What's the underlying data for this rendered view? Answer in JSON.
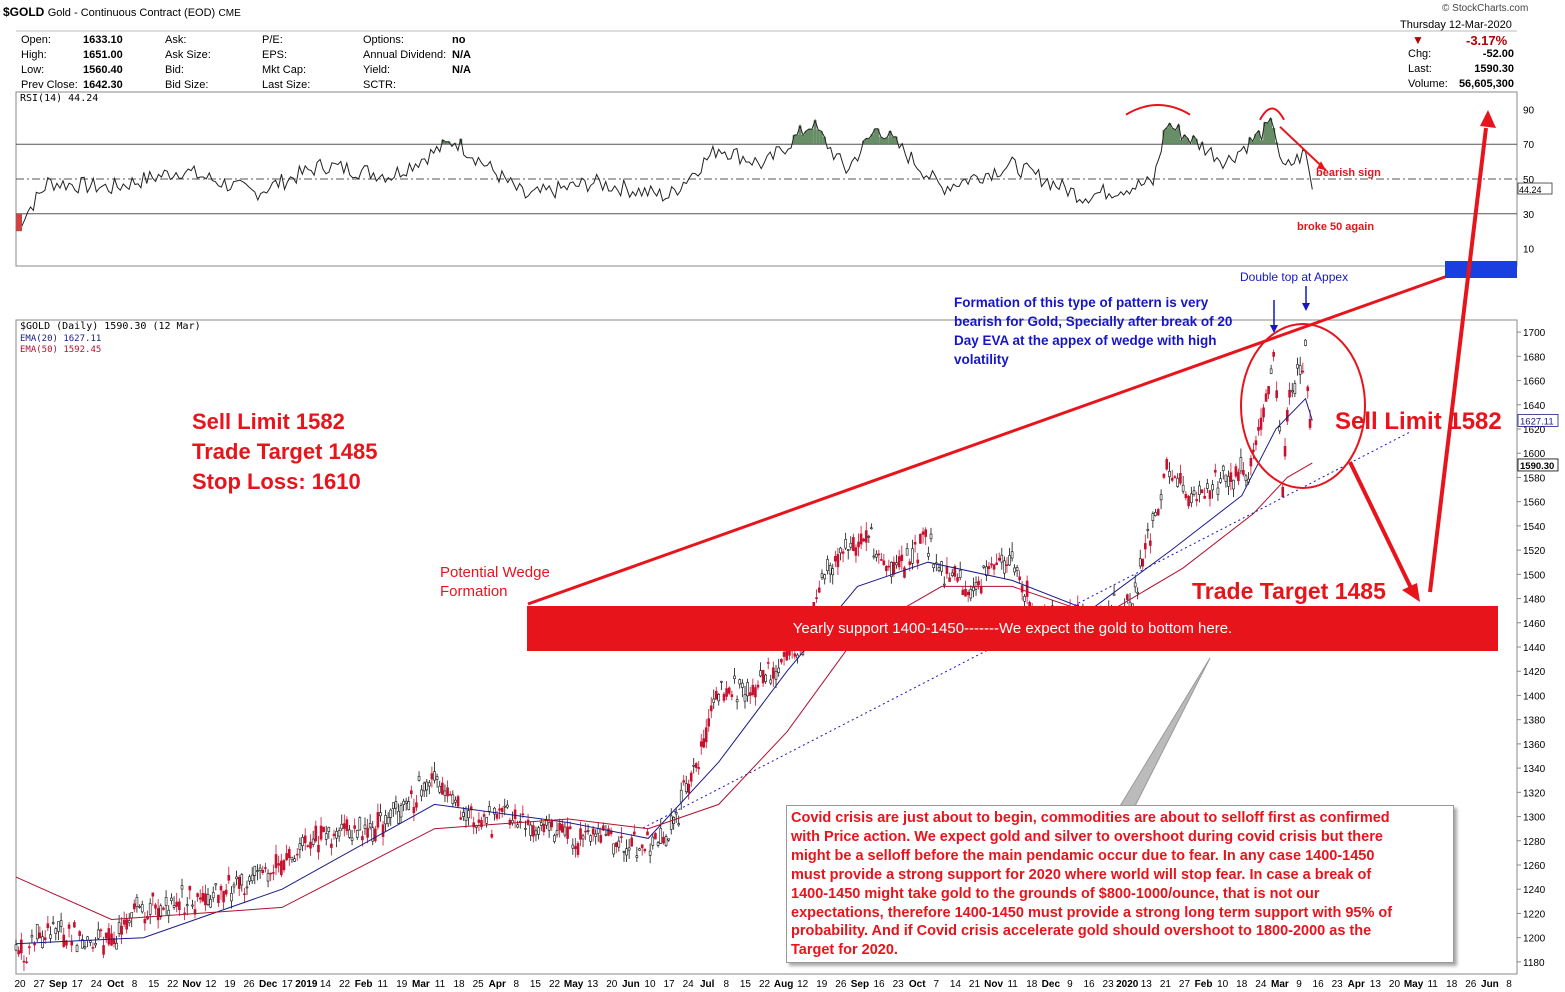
{
  "header": {
    "symbol": "$GOLD",
    "name": "Gold - Continuous Contract (EOD)",
    "exchange": "CME",
    "copyright": "© StockCharts.com",
    "date": "Thursday  12-Mar-2020",
    "change_pct": "-3.17%",
    "colors": {
      "down": "#b00000"
    }
  },
  "quote": {
    "left": [
      {
        "label": "Open:",
        "value": "1633.10"
      },
      {
        "label": "High:",
        "value": "1651.00"
      },
      {
        "label": "Low:",
        "value": "1560.40"
      },
      {
        "label": "Prev Close:",
        "value": "1642.30"
      }
    ],
    "mid1": [
      "Ask:",
      "Ask Size:",
      "Bid:",
      "Bid Size:"
    ],
    "mid2": [
      "P/E:",
      "EPS:",
      "Mkt Cap:",
      "Last Size:"
    ],
    "mid3": [
      {
        "label": "Options:",
        "value": "no"
      },
      {
        "label": "Annual Dividend:",
        "value": "N/A"
      },
      {
        "label": "Yield:",
        "value": "N/A"
      },
      {
        "label": "SCTR:",
        "value": ""
      }
    ],
    "right": [
      {
        "label": "Chg:",
        "value": "-52.00"
      },
      {
        "label": "Last:",
        "value": "1590.30"
      },
      {
        "label": "Volume:",
        "value": "56,605,300"
      }
    ]
  },
  "chart_data": [
    {
      "type": "line",
      "title": "RSI(14) 44.24",
      "ylim": [
        0,
        100
      ],
      "ticks": [
        10,
        30,
        50,
        70,
        90
      ],
      "reference_lines": [
        30,
        50,
        70
      ],
      "last_value": 44.24,
      "x": [
        "2018-08-20",
        "2018-09-03",
        "2018-10-01",
        "2018-11-01",
        "2018-12-03",
        "2019-01-02",
        "2019-02-01",
        "2019-03-01",
        "2019-04-01",
        "2019-05-01",
        "2019-06-03",
        "2019-06-25",
        "2019-07-15",
        "2019-08-05",
        "2019-08-20",
        "2019-09-03",
        "2019-10-01",
        "2019-11-01",
        "2019-12-02",
        "2020-01-02",
        "2020-01-08",
        "2020-02-03",
        "2020-02-24",
        "2020-02-28",
        "2020-03-09",
        "2020-03-12"
      ],
      "values": [
        22,
        48,
        45,
        55,
        42,
        58,
        52,
        72,
        40,
        48,
        40,
        68,
        58,
        82,
        55,
        80,
        45,
        58,
        40,
        48,
        82,
        60,
        82,
        55,
        65,
        44
      ],
      "annotations": [
        "bearish sign",
        "broke 50 again"
      ]
    },
    {
      "type": "line",
      "title": "$GOLD (Daily) 1590.30 (12 Mar)",
      "ylim": [
        1170,
        1710
      ],
      "y_ticks": [
        1180,
        1200,
        1220,
        1240,
        1260,
        1280,
        1300,
        1320,
        1340,
        1360,
        1380,
        1400,
        1420,
        1440,
        1460,
        1480,
        1500,
        1520,
        1540,
        1560,
        1580,
        1600,
        1620,
        1640,
        1660,
        1680,
        1700
      ],
      "x_tick_labels": [
        "20",
        "27",
        "Sep",
        "17",
        "24",
        "Oct",
        "8",
        "15",
        "22",
        "Nov",
        "12",
        "19",
        "26",
        "Dec",
        "17",
        "2019",
        "14",
        "22",
        "Feb",
        "11",
        "19",
        "Mar",
        "11",
        "18",
        "25",
        "Apr",
        "8",
        "15",
        "22",
        "May",
        "13",
        "20",
        "Jun",
        "10",
        "17",
        "24",
        "Jul",
        "8",
        "15",
        "22",
        "Aug",
        "12",
        "19",
        "26",
        "Sep",
        "16",
        "23",
        "Oct",
        "7",
        "14",
        "21",
        "Nov",
        "11",
        "18",
        "Dec",
        "9",
        "16",
        "23",
        "2020",
        "13",
        "21",
        "27",
        "Feb",
        "10",
        "18",
        "24",
        "Mar",
        "9",
        "16",
        "23",
        "Apr",
        "13",
        "20",
        "May",
        "11",
        "18",
        "26",
        "Jun",
        "8"
      ],
      "series": [
        {
          "name": "$GOLD",
          "x": [
            "2018-08-20",
            "2018-09-03",
            "2018-10-01",
            "2018-10-11",
            "2018-11-01",
            "2018-12-03",
            "2018-12-31",
            "2019-01-25",
            "2019-02-20",
            "2019-03-07",
            "2019-04-01",
            "2019-04-23",
            "2019-05-03",
            "2019-05-20",
            "2019-06-03",
            "2019-06-14",
            "2019-06-25",
            "2019-07-10",
            "2019-07-19",
            "2019-08-01",
            "2019-08-13",
            "2019-08-30",
            "2019-09-10",
            "2019-09-24",
            "2019-10-01",
            "2019-10-15",
            "2019-11-01",
            "2019-11-12",
            "2019-11-22",
            "2019-12-10",
            "2019-12-24",
            "2020-01-03",
            "2020-01-08",
            "2020-01-20",
            "2020-02-03",
            "2020-02-14",
            "2020-02-24",
            "2020-02-28",
            "2020-03-02",
            "2020-03-09",
            "2020-03-12"
          ],
          "values": [
            1185,
            1205,
            1195,
            1222,
            1230,
            1245,
            1283,
            1290,
            1330,
            1296,
            1298,
            1278,
            1282,
            1274,
            1282,
            1340,
            1405,
            1405,
            1425,
            1440,
            1510,
            1530,
            1500,
            1530,
            1500,
            1490,
            1515,
            1460,
            1465,
            1465,
            1480,
            1550,
            1590,
            1560,
            1580,
            1585,
            1680,
            1575,
            1650,
            1680,
            1590
          ]
        },
        {
          "name": "EMA(20) 1627.11",
          "x": [
            "2018-08-20",
            "2018-10-15",
            "2018-12-15",
            "2019-02-20",
            "2019-04-20",
            "2019-05-25",
            "2019-06-25",
            "2019-07-25",
            "2019-08-25",
            "2019-09-25",
            "2019-11-01",
            "2019-12-05",
            "2020-01-10",
            "2020-02-10",
            "2020-02-25",
            "2020-03-09",
            "2020-03-12"
          ],
          "values": [
            1195,
            1200,
            1240,
            1310,
            1295,
            1282,
            1345,
            1420,
            1490,
            1510,
            1495,
            1470,
            1520,
            1565,
            1620,
            1645,
            1627
          ]
        },
        {
          "name": "EMA(50) 1592.45",
          "x": [
            "2018-08-20",
            "2018-10-01",
            "2018-12-15",
            "2019-02-20",
            "2019-04-20",
            "2019-05-25",
            "2019-06-25",
            "2019-07-25",
            "2019-08-25",
            "2019-10-01",
            "2019-11-01",
            "2019-12-10",
            "2020-01-15",
            "2020-02-15",
            "2020-03-01",
            "2020-03-12"
          ],
          "values": [
            1250,
            1215,
            1225,
            1290,
            1298,
            1290,
            1310,
            1370,
            1450,
            1490,
            1490,
            1465,
            1505,
            1550,
            1580,
            1592
          ]
        }
      ],
      "last_price_label": "1590.30",
      "ema20_label": "1627.11",
      "ema50_label": "1592.45"
    }
  ],
  "annotations": {
    "sell_lines": [
      "Sell Limit 1582",
      "Trade Target 1485",
      "Stop Loss: 1610"
    ],
    "wedge": [
      "Potential Wedge",
      "Formation"
    ],
    "support": "Yearly support 1400-1450-------We expect the gold to bottom here.",
    "formation": [
      "Formation of this type of pattern is very",
      "bearish for Gold, Specially after break of 20",
      "Day EVA at the appex of wedge with high",
      "volatility"
    ],
    "double_top": "Double top at Appex",
    "sell_limit_right": "Sell Limit 1582",
    "trade_target_right": "Trade Target 1485",
    "covid": [
      "Covid crisis are just about to begin, commodities are about to selloff first as confirmed",
      "with Price action. We expect gold and silver to overshoot during covid crisis but there",
      "might be a selloff before the main pendamic occur due to fear. In any case 1400-1450",
      "must provide a strong support for 2020 where world will stop fear. In case a break of",
      "1400-1450 might take gold to the grounds of $800-1000/ounce, that is not our",
      "expectations, therefore 1400-1450 must provide a strong long term support with 95% of",
      "probability. And if Covid crisis accelerate gold should overshoot to 1800-2000 as the",
      "Target for 2020."
    ],
    "colors": {
      "red": "#e8141c",
      "blue": "#1616c8",
      "support_box": "#e8141c",
      "rsi_fill": "#4d7a4d",
      "ema20": "#1a1a8c",
      "ema50": "#b01030"
    }
  }
}
